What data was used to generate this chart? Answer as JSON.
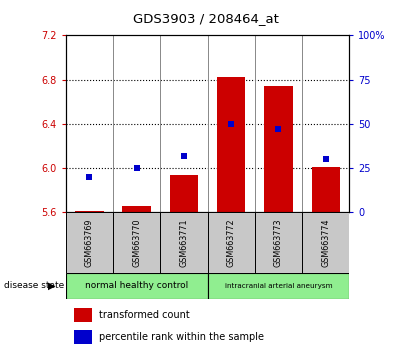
{
  "title": "GDS3903 / 208464_at",
  "samples": [
    "GSM663769",
    "GSM663770",
    "GSM663771",
    "GSM663772",
    "GSM663773",
    "GSM663774"
  ],
  "bar_values": [
    5.61,
    5.66,
    5.94,
    6.82,
    6.74,
    6.01
  ],
  "bar_bottom": 5.6,
  "percentile_values": [
    20,
    25,
    32,
    50,
    47,
    30
  ],
  "ylim_left": [
    5.6,
    7.2
  ],
  "ylim_right": [
    0,
    100
  ],
  "yticks_left": [
    5.6,
    6.0,
    6.4,
    6.8,
    7.2
  ],
  "yticks_right": [
    0,
    25,
    50,
    75,
    100
  ],
  "bar_color": "#cc0000",
  "dot_color": "#0000cc",
  "group1_label": "normal healthy control",
  "group2_label": "intracranial arterial aneurysm",
  "group_label": "disease state",
  "legend_bar_label": "transformed count",
  "legend_dot_label": "percentile rank within the sample",
  "left_color": "#cc0000",
  "right_color": "#0000cc",
  "sample_box_color": "#c8c8c8",
  "group_color": "#90ee90",
  "bar_width": 0.6,
  "grid_dotted_ticks": [
    6.0,
    6.4,
    6.8
  ]
}
